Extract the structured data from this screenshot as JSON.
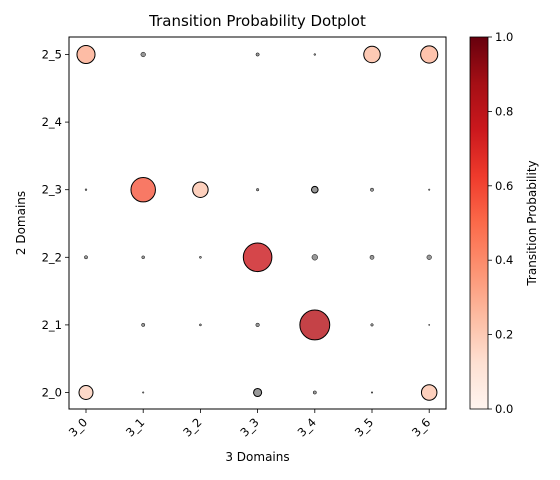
{
  "chart_data": {
    "type": "scatter",
    "title": "Transition Probability Dotplot",
    "xlabel": "3 Domains",
    "ylabel": "2 Domains",
    "x_categories": [
      "3_0",
      "3_1",
      "3_2",
      "3_3",
      "3_4",
      "3_5",
      "3_6"
    ],
    "y_categories": [
      "2_0",
      "2_1",
      "2_2",
      "2_3",
      "2_4",
      "2_5"
    ],
    "colorbar": {
      "label": "Transition Probability",
      "range": [
        0,
        1
      ],
      "ticks": [
        "0.0",
        "0.2",
        "0.4",
        "0.6",
        "0.8",
        "1.0"
      ],
      "colormap": "Reds"
    },
    "zero_dot_color": "#808080",
    "points": [
      {
        "x": "3_0",
        "y": "2_5",
        "value": 0.3
      },
      {
        "x": "3_1",
        "y": "2_5",
        "value": 0.02
      },
      {
        "x": "3_3",
        "y": "2_5",
        "value": 0.01
      },
      {
        "x": "3_4",
        "y": "2_5",
        "value": 0.003
      },
      {
        "x": "3_5",
        "y": "2_5",
        "value": 0.25
      },
      {
        "x": "3_6",
        "y": "2_5",
        "value": 0.27
      },
      {
        "x": "3_0",
        "y": "2_3",
        "value": 0.003
      },
      {
        "x": "3_1",
        "y": "2_3",
        "value": 0.55
      },
      {
        "x": "3_2",
        "y": "2_3",
        "value": 0.22
      },
      {
        "x": "3_3",
        "y": "2_3",
        "value": 0.006
      },
      {
        "x": "3_4",
        "y": "2_3",
        "value": 0.04
      },
      {
        "x": "3_5",
        "y": "2_3",
        "value": 0.01
      },
      {
        "x": "3_6",
        "y": "2_3",
        "value": 0.002
      },
      {
        "x": "3_0",
        "y": "2_2",
        "value": 0.01
      },
      {
        "x": "3_1",
        "y": "2_2",
        "value": 0.008
      },
      {
        "x": "3_2",
        "y": "2_2",
        "value": 0.004
      },
      {
        "x": "3_3",
        "y": "2_2",
        "value": 0.75
      },
      {
        "x": "3_4",
        "y": "2_2",
        "value": 0.03
      },
      {
        "x": "3_5",
        "y": "2_2",
        "value": 0.015
      },
      {
        "x": "3_6",
        "y": "2_2",
        "value": 0.02
      },
      {
        "x": "3_1",
        "y": "2_1",
        "value": 0.01
      },
      {
        "x": "3_2",
        "y": "2_1",
        "value": 0.004
      },
      {
        "x": "3_3",
        "y": "2_1",
        "value": 0.012
      },
      {
        "x": "3_4",
        "y": "2_1",
        "value": 0.82
      },
      {
        "x": "3_5",
        "y": "2_1",
        "value": 0.006
      },
      {
        "x": "3_6",
        "y": "2_1",
        "value": 0.001
      },
      {
        "x": "3_0",
        "y": "2_0",
        "value": 0.18
      },
      {
        "x": "3_1",
        "y": "2_0",
        "value": 0.002
      },
      {
        "x": "3_3",
        "y": "2_0",
        "value": 0.06
      },
      {
        "x": "3_4",
        "y": "2_0",
        "value": 0.01
      },
      {
        "x": "3_5",
        "y": "2_0",
        "value": 0.002
      },
      {
        "x": "3_6",
        "y": "2_0",
        "value": 0.22
      }
    ]
  }
}
